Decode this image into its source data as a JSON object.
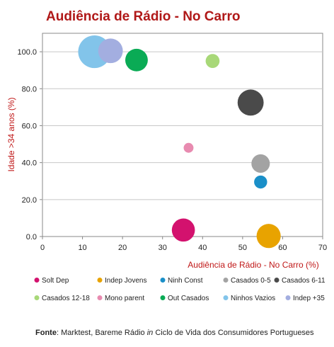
{
  "chart_data": {
    "type": "bubble",
    "title": "Audiência de Rádio - No Carro",
    "xlabel": "Audiência de Rádio - No Carro (%)",
    "ylabel": "Idade >34 anos (%)",
    "xlim": [
      0,
      70
    ],
    "ylim": [
      0,
      110
    ],
    "xticks": [
      "0",
      "10",
      "20",
      "30",
      "40",
      "50",
      "60",
      "70"
    ],
    "yticks": [
      "0.0",
      "20.0",
      "40.0",
      "60.0",
      "80.0",
      "100.0"
    ],
    "grid": "horizontal",
    "legend_position": "bottom",
    "series": [
      {
        "name": "Solt Dep",
        "color": "#d3126e",
        "x": 35.2,
        "y": 3.5,
        "size": 2.2
      },
      {
        "name": "Indep Jovens",
        "color": "#e8a300",
        "x": 56.5,
        "y": 0.3,
        "size": 2.4
      },
      {
        "name": "Ninh Const",
        "color": "#1a8fc8",
        "x": 54.5,
        "y": 29.5,
        "size": 0.7
      },
      {
        "name": "Casados 0-5",
        "color": "#a3a3a3",
        "x": 54.5,
        "y": 39.5,
        "size": 1.4
      },
      {
        "name": "Casados 6-11",
        "color": "#4a4a4a",
        "x": 52.0,
        "y": 72.5,
        "size": 2.8
      },
      {
        "name": "Casados 12-18",
        "color": "#a8d878",
        "x": 42.5,
        "y": 95.0,
        "size": 0.8
      },
      {
        "name": "Mono parent",
        "color": "#e88bb0",
        "x": 36.5,
        "y": 48.0,
        "size": 0.4
      },
      {
        "name": "Out Casados",
        "color": "#0aab55",
        "x": 23.5,
        "y": 95.5,
        "size": 2.1
      },
      {
        "name": "Ninhos Vazios",
        "color": "#82c4ea",
        "x": 13.0,
        "y": 100.0,
        "size": 4.4
      },
      {
        "name": "Indep +35",
        "color": "#a3aee0",
        "x": 17.0,
        "y": 100.5,
        "size": 2.5
      }
    ]
  },
  "footer": {
    "label": "Fonte",
    "text_a": ": Marktest, Bareme Rádio ",
    "text_italic": "in",
    "text_b": " Ciclo de Vida dos Consumidores Portugueses"
  },
  "colors": {
    "title": "#b01818",
    "axis_title": "#c01818"
  }
}
